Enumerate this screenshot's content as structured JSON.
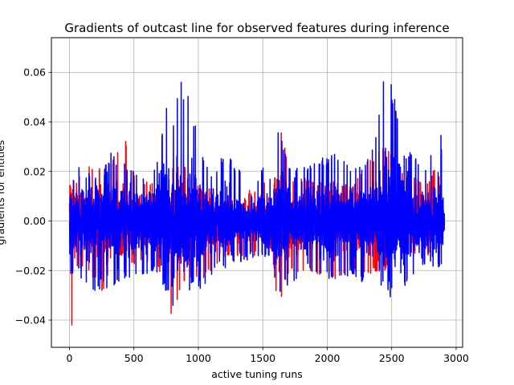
{
  "chart_data": {
    "type": "line",
    "title": "Gradients of outcast line for observed features during inference",
    "xlabel": "active tuning runs",
    "ylabel": "gradients for entities",
    "xlim": [
      -140,
      3050
    ],
    "ylim": [
      -0.051,
      0.074
    ],
    "xticks": [
      0,
      500,
      1000,
      1500,
      2000,
      2500,
      3000
    ],
    "xtick_labels": [
      "0",
      "500",
      "1000",
      "1500",
      "2000",
      "2500",
      "3000"
    ],
    "yticks": [
      -0.04,
      -0.02,
      0.0,
      0.02,
      0.04,
      0.06
    ],
    "ytick_labels": [
      "−0.04",
      "−0.02",
      "0.00",
      "0.02",
      "0.04",
      "0.06"
    ],
    "grid": true,
    "n_points": 2910,
    "series": [
      {
        "color": "#ff0000",
        "envelope": [
          {
            "x": 0,
            "min": -0.045,
            "max": 0.014
          },
          {
            "x": 20,
            "min": -0.045,
            "max": 0.016
          },
          {
            "x": 60,
            "min": -0.019,
            "max": 0.018
          },
          {
            "x": 150,
            "min": -0.022,
            "max": 0.022
          },
          {
            "x": 250,
            "min": -0.03,
            "max": 0.021
          },
          {
            "x": 350,
            "min": -0.016,
            "max": 0.026
          },
          {
            "x": 430,
            "min": -0.014,
            "max": 0.034
          },
          {
            "x": 520,
            "min": -0.019,
            "max": 0.018
          },
          {
            "x": 650,
            "min": -0.016,
            "max": 0.016
          },
          {
            "x": 760,
            "min": -0.028,
            "max": 0.016
          },
          {
            "x": 800,
            "min": -0.042,
            "max": 0.024
          },
          {
            "x": 860,
            "min": -0.028,
            "max": 0.025
          },
          {
            "x": 950,
            "min": -0.025,
            "max": 0.02
          },
          {
            "x": 1050,
            "min": -0.024,
            "max": 0.012
          },
          {
            "x": 1150,
            "min": -0.017,
            "max": 0.018
          },
          {
            "x": 1300,
            "min": -0.014,
            "max": 0.014
          },
          {
            "x": 1450,
            "min": -0.014,
            "max": 0.012
          },
          {
            "x": 1560,
            "min": -0.011,
            "max": 0.018
          },
          {
            "x": 1620,
            "min": -0.035,
            "max": 0.046
          },
          {
            "x": 1700,
            "min": -0.022,
            "max": 0.022
          },
          {
            "x": 1850,
            "min": -0.02,
            "max": 0.018
          },
          {
            "x": 2050,
            "min": -0.024,
            "max": 0.016
          },
          {
            "x": 2200,
            "min": -0.02,
            "max": 0.014
          },
          {
            "x": 2300,
            "min": -0.022,
            "max": 0.024
          },
          {
            "x": 2450,
            "min": -0.02,
            "max": 0.032
          },
          {
            "x": 2600,
            "min": -0.014,
            "max": 0.02
          },
          {
            "x": 2750,
            "min": -0.016,
            "max": 0.016
          },
          {
            "x": 2850,
            "min": -0.012,
            "max": 0.022
          },
          {
            "x": 2910,
            "min": -0.012,
            "max": 0.008
          }
        ]
      },
      {
        "color": "#0000ff",
        "envelope": [
          {
            "x": 0,
            "min": -0.023,
            "max": 0.014
          },
          {
            "x": 20,
            "min": -0.022,
            "max": 0.016
          },
          {
            "x": 60,
            "min": -0.021,
            "max": 0.024
          },
          {
            "x": 150,
            "min": -0.03,
            "max": 0.02
          },
          {
            "x": 250,
            "min": -0.027,
            "max": 0.018
          },
          {
            "x": 320,
            "min": -0.031,
            "max": 0.028
          },
          {
            "x": 400,
            "min": -0.023,
            "max": 0.024
          },
          {
            "x": 520,
            "min": -0.025,
            "max": 0.021
          },
          {
            "x": 650,
            "min": -0.02,
            "max": 0.018
          },
          {
            "x": 760,
            "min": -0.03,
            "max": 0.051
          },
          {
            "x": 800,
            "min": -0.038,
            "max": 0.04
          },
          {
            "x": 850,
            "min": -0.03,
            "max": 0.062
          },
          {
            "x": 950,
            "min": -0.028,
            "max": 0.046
          },
          {
            "x": 1050,
            "min": -0.028,
            "max": 0.022
          },
          {
            "x": 1150,
            "min": -0.018,
            "max": 0.022
          },
          {
            "x": 1200,
            "min": -0.02,
            "max": 0.03
          },
          {
            "x": 1300,
            "min": -0.018,
            "max": 0.022
          },
          {
            "x": 1450,
            "min": -0.014,
            "max": 0.016
          },
          {
            "x": 1560,
            "min": -0.016,
            "max": 0.03
          },
          {
            "x": 1620,
            "min": -0.03,
            "max": 0.041
          },
          {
            "x": 1700,
            "min": -0.026,
            "max": 0.024
          },
          {
            "x": 1850,
            "min": -0.02,
            "max": 0.022
          },
          {
            "x": 2050,
            "min": -0.024,
            "max": 0.028
          },
          {
            "x": 2200,
            "min": -0.022,
            "max": 0.022
          },
          {
            "x": 2300,
            "min": -0.026,
            "max": 0.024
          },
          {
            "x": 2380,
            "min": -0.025,
            "max": 0.038
          },
          {
            "x": 2450,
            "min": -0.033,
            "max": 0.069
          },
          {
            "x": 2600,
            "min": -0.028,
            "max": 0.03
          },
          {
            "x": 2750,
            "min": -0.018,
            "max": 0.022
          },
          {
            "x": 2880,
            "min": -0.02,
            "max": 0.038
          },
          {
            "x": 2910,
            "min": -0.012,
            "max": 0.008
          }
        ]
      }
    ]
  }
}
